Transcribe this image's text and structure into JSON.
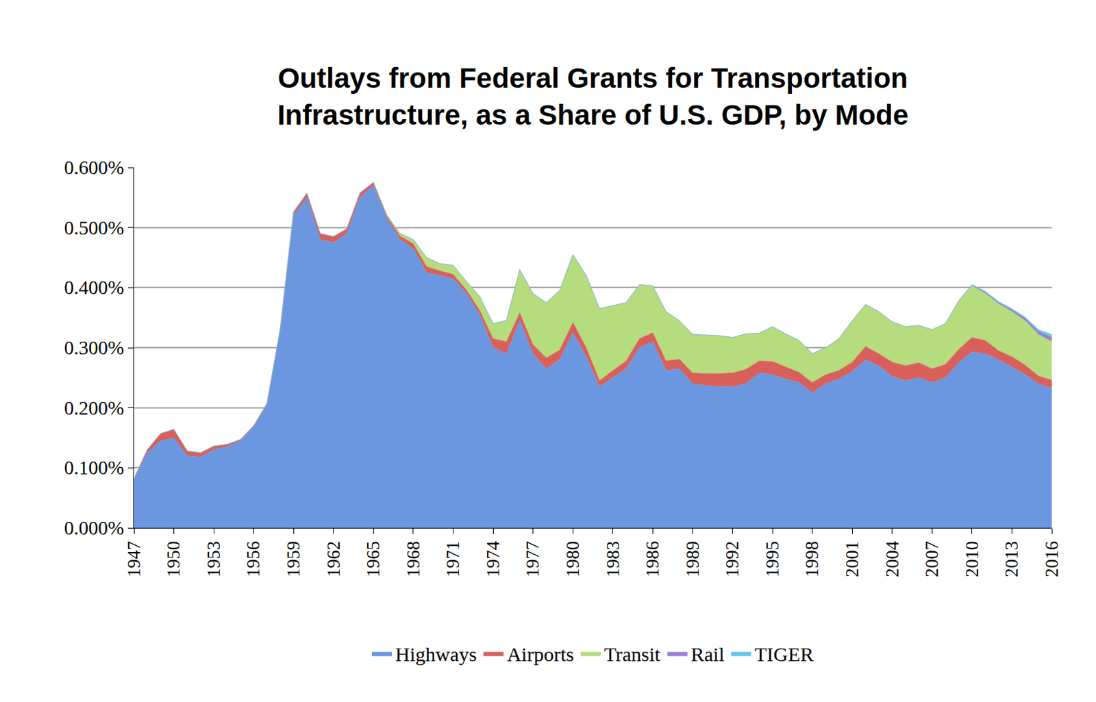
{
  "chart_data": {
    "type": "area",
    "stacked": true,
    "title": "Outlays from Federal Grants for Transportation\nInfrastructure, as a Share of U.S. GDP, by Mode",
    "x": [
      1947,
      1948,
      1949,
      1950,
      1951,
      1952,
      1953,
      1954,
      1955,
      1956,
      1957,
      1958,
      1959,
      1960,
      1961,
      1962,
      1963,
      1964,
      1965,
      1966,
      1967,
      1968,
      1969,
      1970,
      1971,
      1972,
      1973,
      1974,
      1975,
      1976,
      1977,
      1978,
      1979,
      1980,
      1981,
      1982,
      1983,
      1984,
      1985,
      1986,
      1987,
      1988,
      1989,
      1990,
      1991,
      1992,
      1993,
      1994,
      1995,
      1996,
      1997,
      1998,
      1999,
      2000,
      2001,
      2002,
      2003,
      2004,
      2005,
      2006,
      2007,
      2008,
      2009,
      2010,
      2011,
      2012,
      2013,
      2014,
      2015,
      2016
    ],
    "series": [
      {
        "name": "Highways",
        "color": "#6b96e0",
        "values": [
          0.08,
          0.125,
          0.145,
          0.15,
          0.12,
          0.118,
          0.13,
          0.135,
          0.145,
          0.168,
          0.205,
          0.33,
          0.52,
          0.55,
          0.48,
          0.475,
          0.49,
          0.55,
          0.57,
          0.515,
          0.48,
          0.465,
          0.425,
          0.42,
          0.415,
          0.39,
          0.355,
          0.3,
          0.29,
          0.345,
          0.29,
          0.265,
          0.28,
          0.325,
          0.285,
          0.235,
          0.25,
          0.265,
          0.3,
          0.31,
          0.262,
          0.265,
          0.24,
          0.237,
          0.235,
          0.235,
          0.24,
          0.258,
          0.255,
          0.248,
          0.242,
          0.225,
          0.24,
          0.248,
          0.26,
          0.28,
          0.27,
          0.252,
          0.245,
          0.25,
          0.242,
          0.25,
          0.275,
          0.293,
          0.29,
          0.28,
          0.268,
          0.255,
          0.24,
          0.232
        ]
      },
      {
        "name": "Airports",
        "color": "#d9605a",
        "values": [
          0.002,
          0.005,
          0.012,
          0.014,
          0.008,
          0.007,
          0.006,
          0.004,
          0.002,
          0.002,
          0.002,
          0.002,
          0.006,
          0.007,
          0.01,
          0.01,
          0.008,
          0.008,
          0.005,
          0.004,
          0.006,
          0.008,
          0.01,
          0.008,
          0.007,
          0.006,
          0.007,
          0.015,
          0.02,
          0.013,
          0.015,
          0.018,
          0.016,
          0.017,
          0.015,
          0.01,
          0.012,
          0.013,
          0.015,
          0.015,
          0.016,
          0.016,
          0.018,
          0.02,
          0.022,
          0.023,
          0.024,
          0.02,
          0.022,
          0.02,
          0.017,
          0.017,
          0.015,
          0.014,
          0.016,
          0.022,
          0.02,
          0.024,
          0.025,
          0.025,
          0.023,
          0.022,
          0.022,
          0.024,
          0.022,
          0.015,
          0.017,
          0.016,
          0.013,
          0.014
        ]
      },
      {
        "name": "Transit",
        "color": "#b5dc7d",
        "values": [
          0,
          0,
          0,
          0,
          0,
          0,
          0,
          0,
          0,
          0,
          0,
          0,
          0,
          0,
          0,
          0,
          0,
          0,
          0,
          0.002,
          0.004,
          0.007,
          0.015,
          0.012,
          0.015,
          0.014,
          0.023,
          0.025,
          0.035,
          0.072,
          0.085,
          0.092,
          0.099,
          0.113,
          0.12,
          0.12,
          0.108,
          0.097,
          0.09,
          0.078,
          0.082,
          0.064,
          0.064,
          0.064,
          0.063,
          0.059,
          0.059,
          0.046,
          0.058,
          0.055,
          0.053,
          0.048,
          0.045,
          0.053,
          0.069,
          0.07,
          0.07,
          0.067,
          0.065,
          0.062,
          0.065,
          0.068,
          0.081,
          0.086,
          0.078,
          0.078,
          0.075,
          0.074,
          0.069,
          0.064
        ]
      },
      {
        "name": "Rail",
        "color": "#9b7fd0",
        "values": [
          0,
          0,
          0,
          0,
          0,
          0,
          0,
          0,
          0,
          0,
          0,
          0,
          0,
          0,
          0,
          0,
          0,
          0,
          0,
          0,
          0,
          0,
          0,
          0,
          0,
          0,
          0,
          0,
          0,
          0,
          0,
          0,
          0,
          0,
          0,
          0,
          0,
          0,
          0,
          0,
          0,
          0,
          0,
          0,
          0,
          0,
          0,
          0,
          0,
          0,
          0,
          0,
          0,
          0,
          0,
          0,
          0,
          0,
          0,
          0,
          0,
          0,
          0,
          0.001,
          0.002,
          0.002,
          0.003,
          0.004,
          0.005,
          0.007
        ]
      },
      {
        "name": "TIGER",
        "color": "#5fc8e8",
        "values": [
          0,
          0,
          0,
          0,
          0,
          0,
          0,
          0,
          0,
          0,
          0,
          0,
          0,
          0,
          0,
          0,
          0,
          0,
          0,
          0,
          0,
          0,
          0,
          0,
          0,
          0,
          0,
          0,
          0,
          0,
          0,
          0,
          0,
          0,
          0,
          0,
          0,
          0,
          0,
          0,
          0,
          0,
          0,
          0,
          0,
          0,
          0,
          0,
          0,
          0,
          0,
          0,
          0,
          0,
          0,
          0,
          0,
          0,
          0,
          0,
          0,
          0,
          0,
          0.001,
          0.002,
          0.002,
          0.002,
          0.002,
          0.003,
          0.005
        ]
      }
    ],
    "xlim": [
      1947,
      2016
    ],
    "xticks": [
      1947,
      1950,
      1953,
      1956,
      1959,
      1962,
      1965,
      1968,
      1971,
      1974,
      1977,
      1980,
      1983,
      1986,
      1989,
      1992,
      1995,
      1998,
      2001,
      2004,
      2007,
      2010,
      2013,
      2016
    ],
    "ylim": [
      0,
      0.6
    ],
    "yticks": [
      {
        "value": 0,
        "label": "0.000%"
      },
      {
        "value": 0.1,
        "label": "0.100%"
      },
      {
        "value": 0.2,
        "label": "0.200%"
      },
      {
        "value": 0.3,
        "label": "0.300%"
      },
      {
        "value": 0.4,
        "label": "0.400%"
      },
      {
        "value": 0.5,
        "label": "0.500%"
      },
      {
        "value": 0.6,
        "label": "0.600%"
      }
    ],
    "grid": true,
    "legend": "bottom"
  }
}
